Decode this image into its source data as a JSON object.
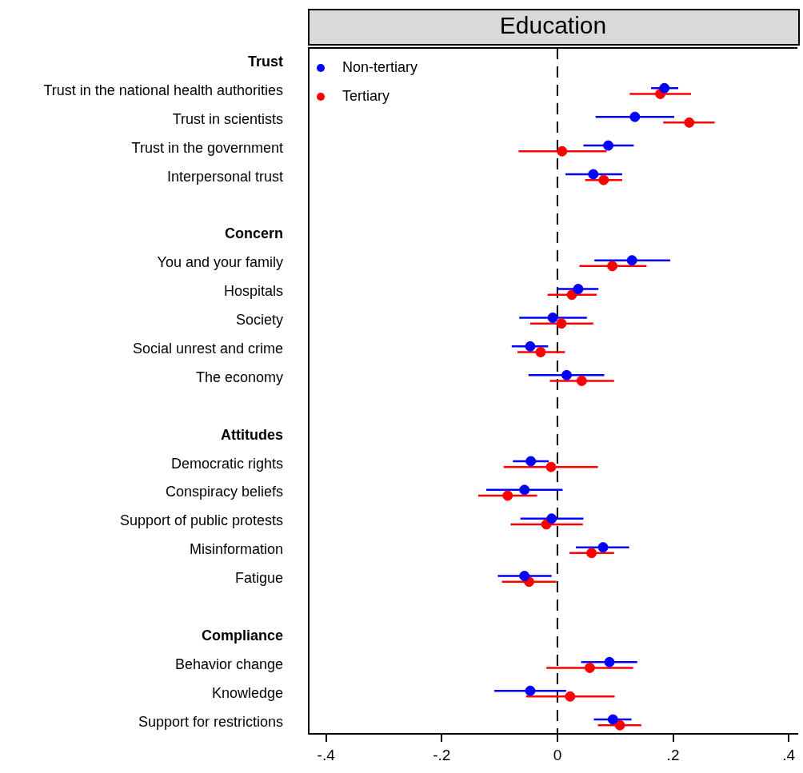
{
  "chart_data": {
    "type": "scatter",
    "orientation": "horizontal",
    "title": "Education",
    "marker": "circle",
    "legend": "top left",
    "categories": [
      "Trust",
      "Trust in the national health authorities",
      "Trust in scientists",
      "Trust in the government",
      "Interpersonal trust",
      null,
      "Concern",
      "You and your family",
      "Hospitals",
      "Society",
      "Social unrest and crime",
      "The economy",
      null,
      "Attitudes",
      "Democratic rights",
      "Conspiracy beliefs",
      "Support of public protests",
      "Misinformation",
      "Fatigue",
      null,
      "Compliance",
      "Behavior change",
      "Knowledge",
      "Support for restrictions"
    ],
    "series": [
      {
        "name": "Non-tertiary",
        "color": "#0000ff",
        "values": [
          null,
          0.185,
          0.134,
          0.088,
          0.062,
          null,
          null,
          0.129,
          0.036,
          -0.008,
          -0.047,
          0.016,
          null,
          null,
          -0.046,
          -0.057,
          -0.01,
          0.079,
          -0.057,
          null,
          null,
          0.09,
          -0.047,
          0.096
        ],
        "errors": [
          null,
          [
            0.162,
            0.209
          ],
          [
            0.066,
            0.202
          ],
          [
            0.045,
            0.132
          ],
          [
            0.014,
            0.112
          ],
          null,
          null,
          [
            0.064,
            0.195
          ],
          [
            0.0,
            0.071
          ],
          [
            -0.066,
            0.051
          ],
          [
            -0.079,
            -0.016
          ],
          [
            -0.05,
            0.081
          ],
          null,
          null,
          [
            -0.077,
            -0.015
          ],
          [
            -0.123,
            0.009
          ],
          [
            -0.064,
            0.045
          ],
          [
            0.032,
            0.124
          ],
          [
            -0.103,
            -0.01
          ],
          null,
          null,
          [
            0.041,
            0.138
          ],
          [
            -0.109,
            0.015
          ],
          [
            0.063,
            0.128
          ]
        ]
      },
      {
        "name": "Tertiary",
        "color": "#ff0000",
        "values": [
          null,
          0.178,
          0.228,
          0.008,
          0.08,
          null,
          null,
          0.095,
          0.025,
          0.007,
          -0.029,
          0.042,
          null,
          null,
          -0.011,
          -0.086,
          -0.019,
          0.059,
          -0.049,
          null,
          null,
          0.056,
          0.022,
          0.108
        ],
        "errors": [
          null,
          [
            0.125,
            0.231
          ],
          [
            0.183,
            0.272
          ],
          [
            -0.067,
            0.085
          ],
          [
            0.048,
            0.112
          ],
          null,
          null,
          [
            0.038,
            0.154
          ],
          [
            -0.017,
            0.068
          ],
          [
            -0.047,
            0.062
          ],
          [
            -0.069,
            0.013
          ],
          [
            -0.013,
            0.098
          ],
          null,
          null,
          [
            -0.093,
            0.07
          ],
          [
            -0.137,
            -0.035
          ],
          [
            -0.081,
            0.044
          ],
          [
            0.021,
            0.098
          ],
          [
            -0.096,
            -0.002
          ],
          null,
          null,
          [
            -0.019,
            0.131
          ],
          [
            -0.054,
            0.099
          ],
          [
            0.07,
            0.145
          ]
        ]
      }
    ],
    "xlim": [
      -0.43,
      0.415
    ],
    "xticks": [
      {
        "value": -0.4,
        "label": "-.4"
      },
      {
        "value": -0.2,
        "label": "-.2"
      },
      0,
      {
        "value": 0.2,
        "label": ".2"
      },
      {
        "value": 0.4,
        "label": ".4"
      }
    ],
    "ref_lines": [
      {
        "axis": "x",
        "value": 0,
        "line_style": "dashed",
        "color": "#000000"
      }
    ]
  }
}
